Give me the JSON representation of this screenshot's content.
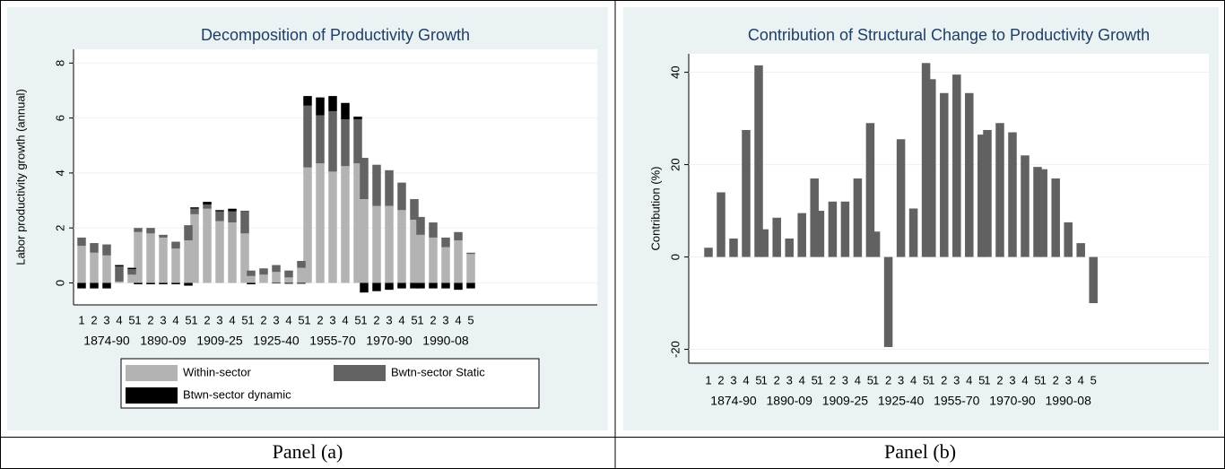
{
  "chart_data": [
    {
      "type": "bar",
      "stacked": true,
      "title": "Decomposition of Productivity Growth",
      "y_label": "Labor productivity growth (annual)",
      "caption": "Panel (a)",
      "groups": [
        "1874-90",
        "1890-09",
        "1909-25",
        "1925-40",
        "1955-70",
        "1970-90",
        "1990-08"
      ],
      "categories": [
        "1",
        "2",
        "3",
        "4",
        "5",
        "1",
        "2",
        "3",
        "4",
        "5",
        "1",
        "2",
        "3",
        "4",
        "5",
        "1",
        "2",
        "3",
        "4",
        "5",
        "1",
        "2",
        "3",
        "4",
        "5",
        "1",
        "2",
        "3",
        "4",
        "5",
        "1",
        "2",
        "3",
        "4",
        "5"
      ],
      "series": [
        {
          "name": "Within-sector",
          "color": "#b3b3b3",
          "values": [
            1.35,
            1.1,
            1.0,
            0.05,
            0.3,
            1.85,
            1.8,
            1.65,
            1.25,
            1.55,
            2.5,
            2.7,
            2.25,
            2.2,
            1.8,
            0.25,
            0.3,
            0.4,
            0.2,
            0.55,
            4.2,
            4.35,
            4.05,
            4.25,
            4.35,
            3.05,
            2.8,
            2.8,
            2.65,
            2.3,
            1.75,
            1.65,
            1.3,
            1.55,
            1.05
          ]
        },
        {
          "name": "Bwtn-sector Static",
          "color": "#636363",
          "values": [
            0.3,
            0.35,
            0.4,
            0.55,
            0.2,
            0.15,
            0.2,
            0.1,
            0.25,
            0.55,
            0.2,
            0.15,
            0.35,
            0.4,
            0.8,
            0.2,
            0.2,
            0.25,
            0.25,
            0.25,
            2.25,
            1.75,
            2.2,
            1.7,
            1.6,
            1.5,
            1.5,
            1.3,
            1.0,
            0.75,
            0.65,
            0.55,
            0.35,
            0.3,
            0.05
          ]
        },
        {
          "name": "Btwn-sector dynamic",
          "color": "#000000",
          "values": [
            -0.2,
            -0.2,
            -0.2,
            0.05,
            0.05,
            -0.05,
            -0.05,
            -0.05,
            -0.05,
            -0.1,
            0.05,
            0.1,
            0.05,
            0.1,
            0.02,
            -0.05,
            0.02,
            -0.02,
            -0.03,
            -0.03,
            0.35,
            0.65,
            0.55,
            0.6,
            0.1,
            -0.35,
            -0.3,
            -0.25,
            -0.2,
            -0.2,
            -0.2,
            -0.2,
            -0.2,
            -0.25,
            -0.2
          ]
        }
      ],
      "ylim": [
        -0.8,
        8.5
      ],
      "yticks": [
        0,
        2,
        4,
        6,
        8
      ],
      "grid": true,
      "legend": "bottom"
    },
    {
      "type": "bar",
      "title": "Contribution of Structural Change to Productivity Growth",
      "y_label": "Contribution (%)",
      "caption": "Panel (b)",
      "groups": [
        "1874-90",
        "1890-09",
        "1909-25",
        "1925-40",
        "1955-70",
        "1970-90",
        "1990-08"
      ],
      "categories": [
        "1",
        "2",
        "3",
        "4",
        "5",
        "1",
        "2",
        "3",
        "4",
        "5",
        "1",
        "2",
        "3",
        "4",
        "5",
        "1",
        "2",
        "3",
        "4",
        "5",
        "1",
        "2",
        "3",
        "4",
        "5",
        "1",
        "2",
        "3",
        "4",
        "5",
        "1",
        "2",
        "3",
        "4",
        "5"
      ],
      "series": [
        {
          "color": "#616161",
          "values": [
            2,
            14,
            4,
            27.5,
            41.5,
            6,
            8.5,
            4,
            9.5,
            17,
            10,
            12,
            12,
            17,
            29,
            5.5,
            -19.5,
            25.5,
            10.5,
            42,
            38.5,
            35.5,
            39.5,
            35.5,
            26.5,
            27.5,
            29,
            27,
            22,
            19.5,
            19,
            17,
            7.5,
            3,
            -10
          ]
        }
      ],
      "ylim": [
        -23,
        44
      ],
      "yticks": [
        -20,
        0,
        20,
        40
      ],
      "grid": true
    }
  ]
}
